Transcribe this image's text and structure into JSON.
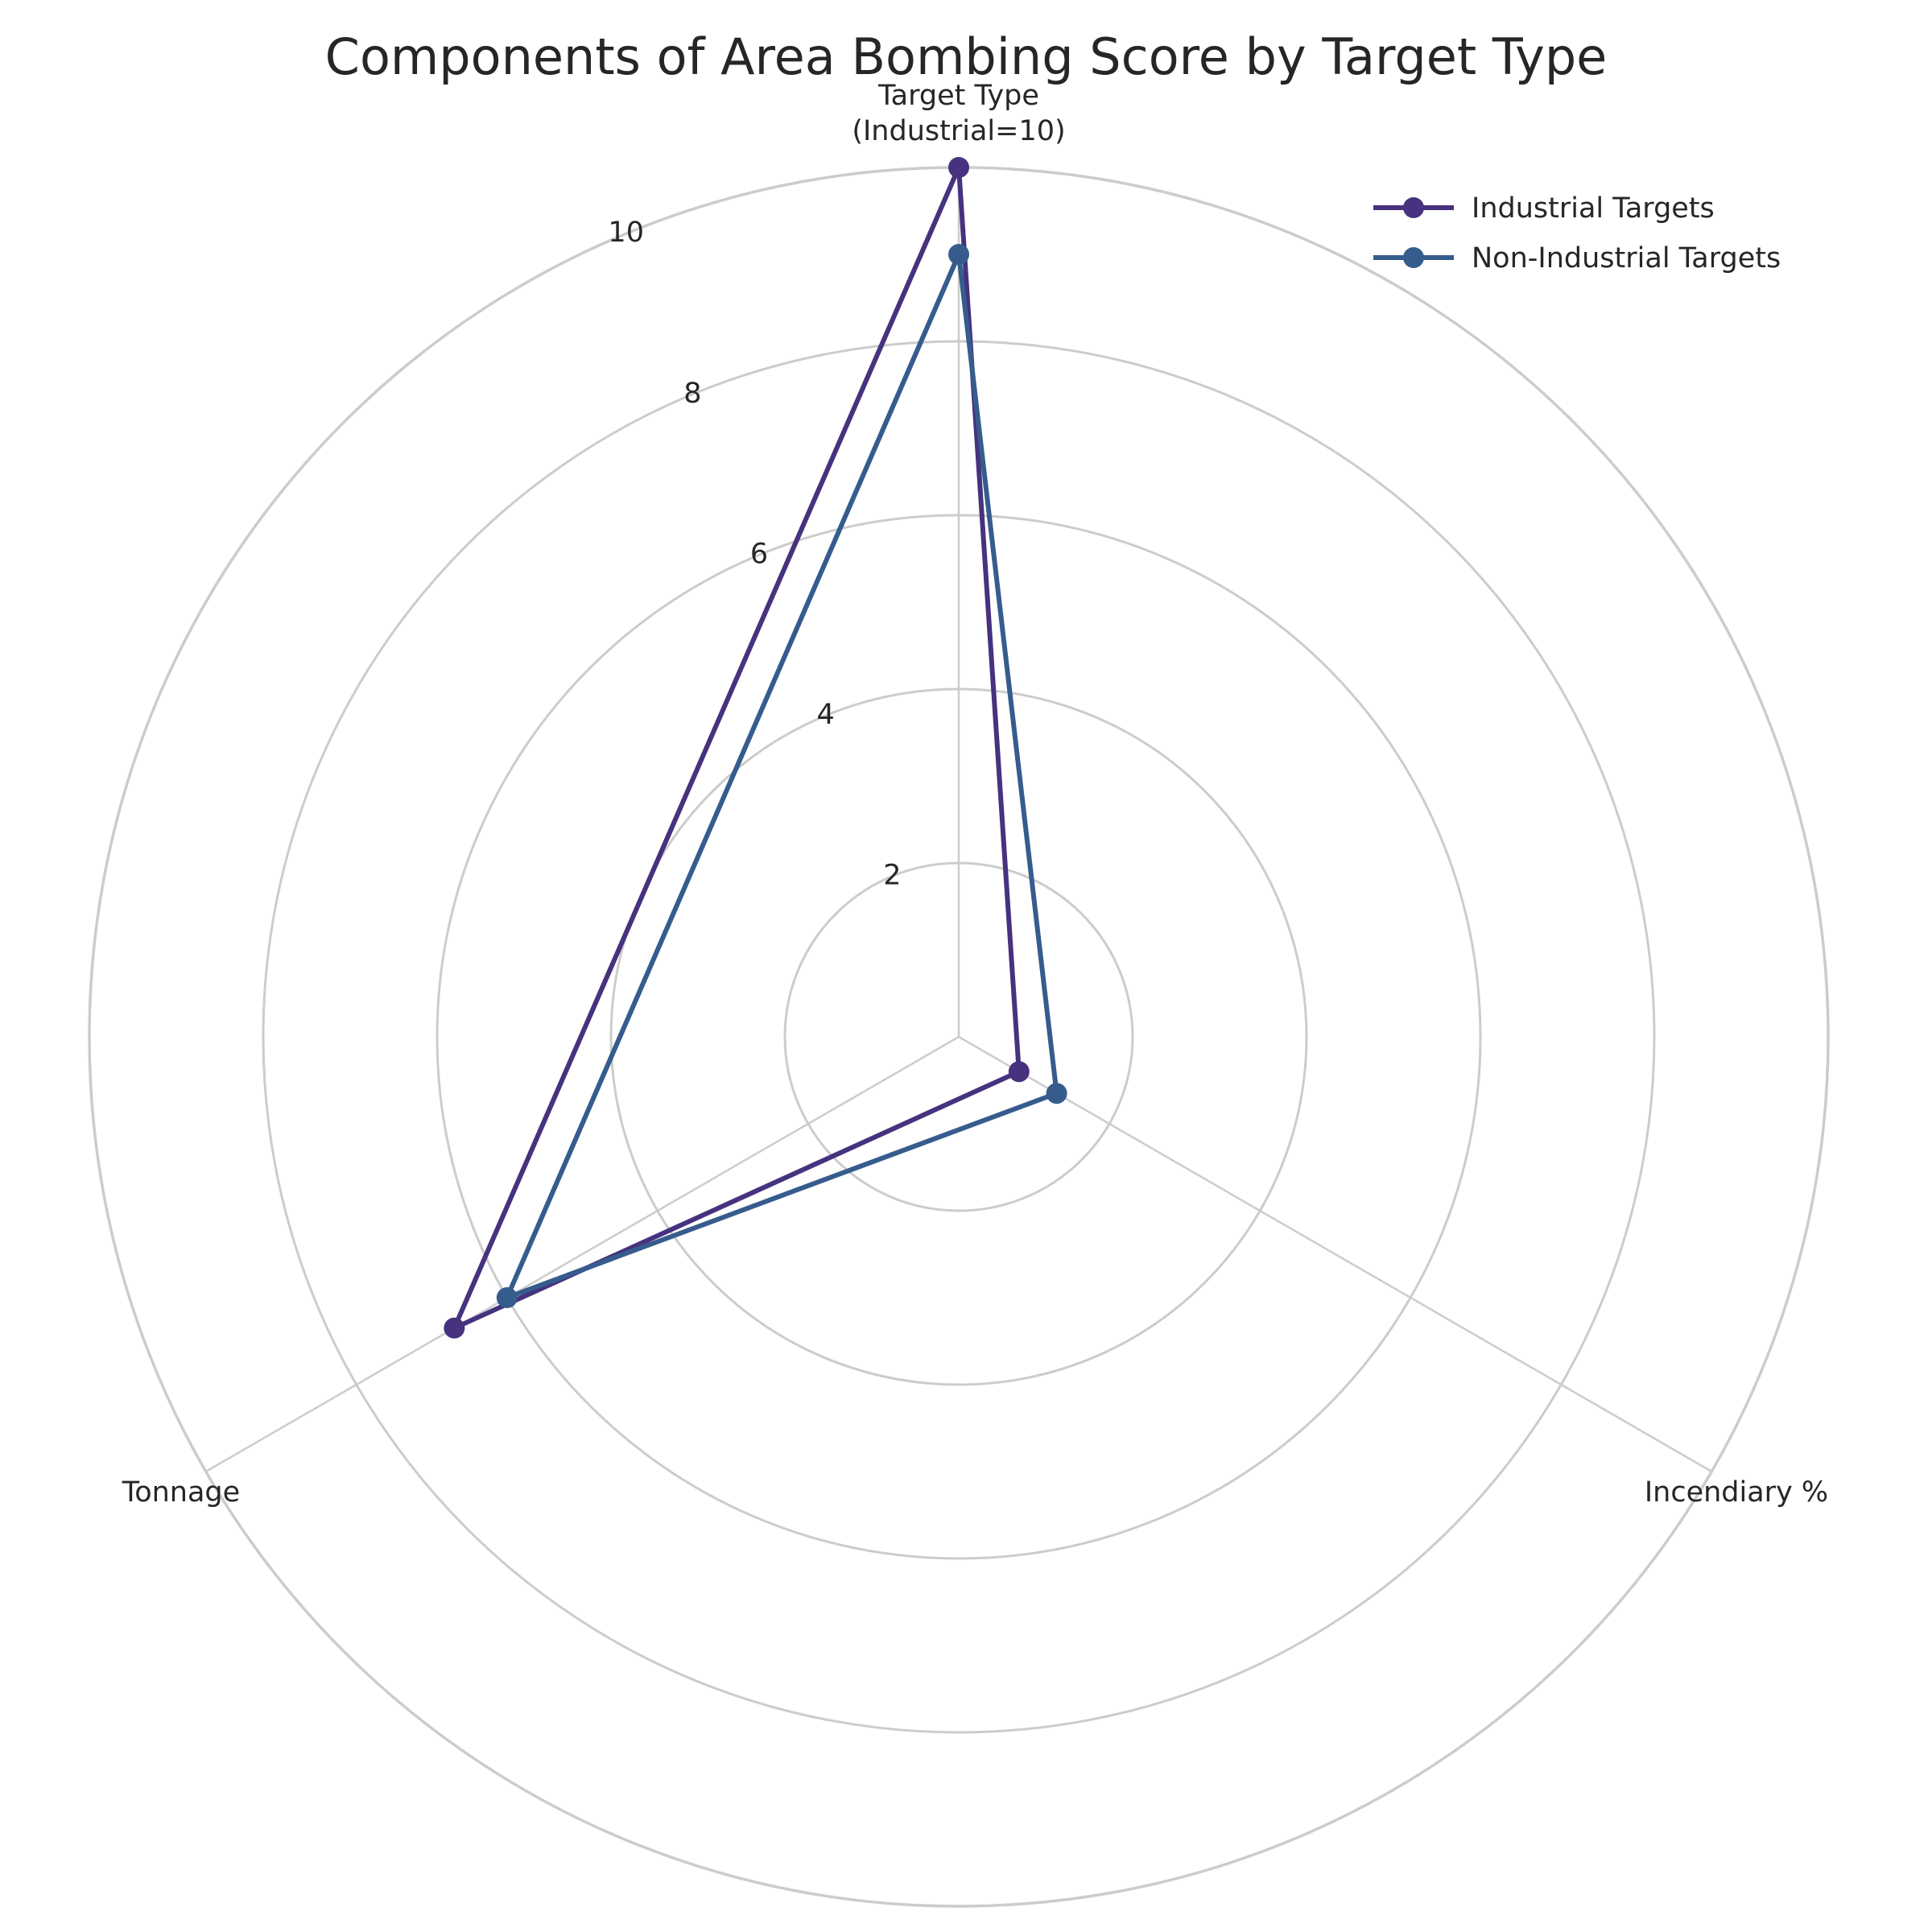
{
  "chart_data": {
    "type": "radar",
    "title": "Components of Area Bombing Score by Target Type",
    "axes": [
      "Target Type\n(Industrial=10)",
      "Incendiary %",
      "Tonnage"
    ],
    "rlim": [
      0,
      10
    ],
    "rticks": [
      2,
      4,
      6,
      8,
      10
    ],
    "grid": true,
    "legend_position": "top-right",
    "series": [
      {
        "name": "Industrial Targets",
        "color": "#46327e",
        "values": [
          10,
          0.8,
          6.7
        ]
      },
      {
        "name": "Non-Industrial Targets",
        "color": "#365c8d",
        "values": [
          9.0,
          1.3,
          6.0
        ]
      }
    ]
  }
}
